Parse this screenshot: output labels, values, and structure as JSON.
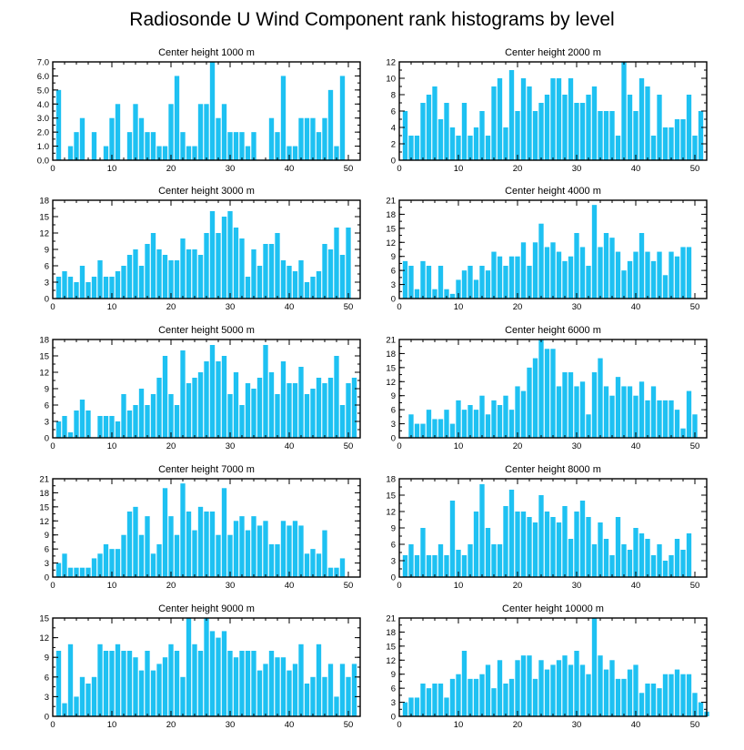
{
  "title": "Radiosonde U Wind Component rank histograms by level",
  "bar_color": "#1EC1F2",
  "chart_data": [
    {
      "type": "bar",
      "title": "Center height 1000 m",
      "xlim": [
        0,
        52
      ],
      "ylim": [
        0,
        7
      ],
      "xticks": [
        0,
        10,
        20,
        30,
        40,
        50
      ],
      "yticks": [
        "0.0",
        "1.0",
        "2.0",
        "3.0",
        "4.0",
        "5.0",
        "6.0",
        "7.0"
      ],
      "y_minor_step": 0.5,
      "values": [
        5,
        0,
        1,
        2,
        3,
        0,
        2,
        0,
        1,
        3,
        4,
        0,
        2,
        4,
        3,
        2,
        2,
        1,
        1,
        4,
        6,
        2,
        1,
        1,
        4,
        4,
        7,
        3,
        4,
        2,
        2,
        2,
        1,
        2,
        0,
        0,
        3,
        2,
        6,
        1,
        1,
        3,
        3,
        3,
        2,
        3,
        5,
        1,
        6
      ]
    },
    {
      "type": "bar",
      "title": "Center height 2000 m",
      "xlim": [
        0,
        52
      ],
      "ylim": [
        0,
        12
      ],
      "xticks": [
        0,
        10,
        20,
        30,
        40,
        50
      ],
      "yticks": [
        "0",
        "2",
        "4",
        "6",
        "8",
        "10",
        "12"
      ],
      "y_minor_step": 1,
      "values": [
        6,
        3,
        3,
        7,
        8,
        9,
        5,
        7,
        4,
        3,
        7,
        3,
        4,
        6,
        3,
        9,
        10,
        4,
        11,
        6,
        10,
        9,
        6,
        7,
        8,
        10,
        10,
        8,
        10,
        7,
        7,
        8,
        9,
        6,
        6,
        6,
        3,
        12,
        8,
        6,
        10,
        9,
        3,
        8,
        4,
        4,
        5,
        5,
        8,
        3,
        6
      ]
    },
    {
      "type": "bar",
      "title": "Center height 3000 m",
      "xlim": [
        0,
        52
      ],
      "ylim": [
        0,
        18
      ],
      "xticks": [
        0,
        10,
        20,
        30,
        40,
        50
      ],
      "yticks": [
        "0",
        "3",
        "6",
        "9",
        "12",
        "15",
        "18"
      ],
      "y_minor_step": 1.5,
      "values": [
        4,
        5,
        4,
        3,
        6,
        3,
        4,
        7,
        4,
        4,
        5,
        6,
        8,
        9,
        6,
        10,
        12,
        9,
        8,
        7,
        7,
        11,
        9,
        9,
        8,
        12,
        16,
        12,
        15,
        16,
        13,
        11,
        4,
        9,
        6,
        10,
        10,
        12,
        7,
        6,
        5,
        7,
        3,
        4,
        5,
        10,
        9,
        13,
        8,
        13
      ]
    },
    {
      "type": "bar",
      "title": "Center height 4000 m",
      "xlim": [
        0,
        52
      ],
      "ylim": [
        0,
        21
      ],
      "xticks": [
        0,
        10,
        20,
        30,
        40,
        50
      ],
      "yticks": [
        "0",
        "3",
        "6",
        "9",
        "12",
        "15",
        "18",
        "21"
      ],
      "y_minor_step": 1.5,
      "values": [
        8,
        7,
        2,
        8,
        7,
        2,
        7,
        2,
        1,
        4,
        6,
        7,
        4,
        7,
        6,
        10,
        9,
        7,
        9,
        9,
        12,
        7,
        12,
        16,
        11,
        12,
        10,
        8,
        9,
        14,
        11,
        7,
        20,
        11,
        14,
        13,
        10,
        6,
        8,
        10,
        14,
        10,
        8,
        10,
        5,
        10,
        9,
        11,
        11
      ]
    },
    {
      "type": "bar",
      "title": "Center height 5000 m",
      "xlim": [
        0,
        52
      ],
      "ylim": [
        0,
        18
      ],
      "xticks": [
        0,
        10,
        20,
        30,
        40,
        50
      ],
      "yticks": [
        "0",
        "3",
        "6",
        "9",
        "12",
        "15",
        "18"
      ],
      "y_minor_step": 1.5,
      "values": [
        3,
        4,
        1,
        5,
        7,
        5,
        0,
        4,
        4,
        4,
        3,
        8,
        5,
        6,
        9,
        6,
        8,
        11,
        15,
        8,
        6,
        16,
        10,
        11,
        12,
        14,
        17,
        14,
        15,
        8,
        12,
        6,
        10,
        9,
        11,
        17,
        12,
        8,
        14,
        10,
        10,
        13,
        8,
        9,
        11,
        10,
        11,
        15,
        6,
        10,
        11
      ]
    },
    {
      "type": "bar",
      "title": "Center height 6000 m",
      "xlim": [
        0,
        52
      ],
      "ylim": [
        0,
        21
      ],
      "xticks": [
        0,
        10,
        20,
        30,
        40,
        50
      ],
      "yticks": [
        "0",
        "3",
        "6",
        "9",
        "12",
        "15",
        "18",
        "21"
      ],
      "y_minor_step": 1.5,
      "values": [
        0,
        5,
        3,
        3,
        6,
        4,
        4,
        6,
        3,
        8,
        6,
        7,
        6,
        9,
        5,
        8,
        7,
        9,
        6,
        11,
        10,
        15,
        17,
        21,
        19,
        19,
        11,
        14,
        14,
        11,
        12,
        5,
        14,
        17,
        11,
        9,
        13,
        11,
        11,
        9,
        12,
        8,
        11,
        8,
        8,
        8,
        6,
        2,
        10,
        5
      ]
    },
    {
      "type": "bar",
      "title": "Center height 7000 m",
      "xlim": [
        0,
        52
      ],
      "ylim": [
        0,
        21
      ],
      "xticks": [
        0,
        10,
        20,
        30,
        40,
        50
      ],
      "yticks": [
        "0",
        "3",
        "6",
        "9",
        "12",
        "15",
        "18",
        "21"
      ],
      "y_minor_step": 1.5,
      "values": [
        3,
        5,
        2,
        2,
        2,
        2,
        4,
        5,
        7,
        6,
        6,
        9,
        14,
        15,
        9,
        13,
        5,
        7,
        19,
        13,
        9,
        20,
        14,
        10,
        15,
        14,
        14,
        9,
        19,
        9,
        12,
        13,
        10,
        13,
        11,
        12,
        7,
        7,
        12,
        11,
        12,
        11,
        5,
        6,
        5,
        10,
        2,
        2,
        4
      ]
    },
    {
      "type": "bar",
      "title": "Center height 8000 m",
      "xlim": [
        0,
        52
      ],
      "ylim": [
        0,
        18
      ],
      "xticks": [
        0,
        10,
        20,
        30,
        40,
        50
      ],
      "yticks": [
        "0",
        "3",
        "6",
        "9",
        "12",
        "15",
        "18"
      ],
      "y_minor_step": 1.5,
      "values": [
        4,
        6,
        4,
        9,
        4,
        4,
        6,
        4,
        14,
        5,
        4,
        6,
        12,
        17,
        9,
        6,
        6,
        13,
        16,
        12,
        12,
        11,
        10,
        15,
        12,
        11,
        10,
        13,
        7,
        12,
        14,
        11,
        6,
        10,
        7,
        4,
        11,
        6,
        5,
        9,
        8,
        7,
        4,
        6,
        3,
        4,
        7,
        5,
        8
      ]
    },
    {
      "type": "bar",
      "title": "Center height 9000 m",
      "xlim": [
        0,
        52
      ],
      "ylim": [
        0,
        15
      ],
      "xticks": [
        0,
        10,
        20,
        30,
        40,
        50
      ],
      "yticks": [
        "0",
        "3",
        "6",
        "9",
        "12",
        "15"
      ],
      "y_minor_step": 1.5,
      "values": [
        10,
        2,
        11,
        3,
        6,
        5,
        6,
        11,
        10,
        10,
        11,
        10,
        10,
        9,
        7,
        10,
        7,
        8,
        9,
        11,
        10,
        6,
        15,
        11,
        10,
        15,
        13,
        12,
        13,
        10,
        9,
        10,
        10,
        10,
        7,
        8,
        10,
        9,
        9,
        7,
        8,
        11,
        5,
        6,
        11,
        6,
        8,
        3,
        8,
        6,
        8
      ]
    },
    {
      "type": "bar",
      "title": "Center height 10000 m",
      "xlim": [
        0,
        52
      ],
      "ylim": [
        0,
        21
      ],
      "xticks": [
        0,
        10,
        20,
        30,
        40,
        50
      ],
      "yticks": [
        "0",
        "3",
        "6",
        "9",
        "12",
        "15",
        "18",
        "21"
      ],
      "y_minor_step": 1.5,
      "values": [
        3,
        4,
        4,
        7,
        6,
        7,
        7,
        4,
        8,
        9,
        14,
        8,
        8,
        9,
        11,
        6,
        12,
        7,
        8,
        12,
        13,
        13,
        8,
        12,
        10,
        11,
        12,
        13,
        11,
        14,
        11,
        9,
        21,
        13,
        10,
        12,
        8,
        8,
        10,
        11,
        5,
        7,
        7,
        6,
        9,
        9,
        10,
        9,
        9,
        5,
        3,
        1
      ]
    }
  ]
}
